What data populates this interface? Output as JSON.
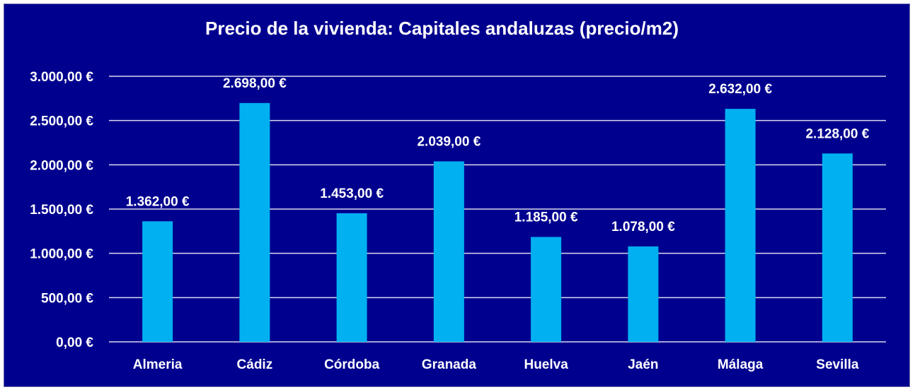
{
  "chart_data": {
    "type": "bar",
    "title": "Precio de la vivienda: Capitales andaluzas (precio/m2)",
    "xlabel": "",
    "ylabel": "",
    "categories": [
      "Almeria",
      "Cádiz",
      "Córdoba",
      "Granada",
      "Huelva",
      "Jaén",
      "Málaga",
      "Sevilla"
    ],
    "values": [
      1362,
      2698,
      1453,
      2039,
      1185,
      1078,
      2632,
      2128
    ],
    "value_labels": [
      "1.362,00 €",
      "2.698,00 €",
      "1.453,00 €",
      "2.039,00 €",
      "1.185,00 €",
      "1.078,00 €",
      "2.632,00 €",
      "2.128,00 €"
    ],
    "ylim": [
      0,
      3000
    ],
    "yticks": [
      0,
      500,
      1000,
      1500,
      2000,
      2500,
      3000
    ],
    "ytick_labels": [
      "0,00 €",
      "500,00 €",
      "1.000,00 €",
      "1.500,00 €",
      "2.000,00 €",
      "2.500,00 €",
      "3.000,00 €"
    ],
    "grid": true,
    "legend": "none",
    "colors": {
      "background": "#00008f",
      "bar": "#00b0f0",
      "gridline": "#d9d9ee",
      "text": "#ffffff"
    }
  }
}
